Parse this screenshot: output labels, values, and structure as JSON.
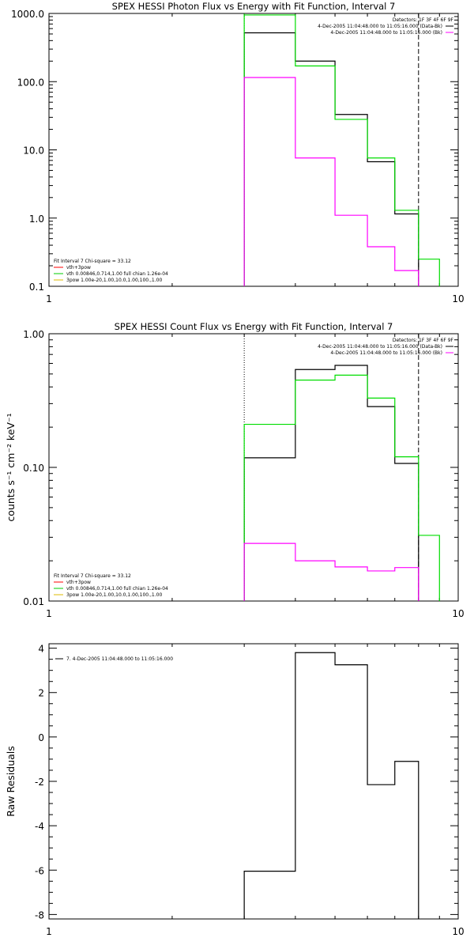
{
  "chart_data": [
    {
      "type": "line",
      "title": "SPEX HESSI Photon Flux vs Energy with Fit Function, Interval 7",
      "xlabel": "",
      "ylabel": "",
      "xscale": "log",
      "yscale": "log",
      "xlim": [
        1,
        10
      ],
      "ylim": [
        0.1,
        1000
      ],
      "xticklabels": [
        "1",
        "10"
      ],
      "yticklabels": [
        "0.1",
        "1.0",
        "10.0",
        "100.0",
        "1000.0"
      ],
      "edges": [
        3,
        4,
        5,
        6,
        7,
        8,
        9
      ],
      "series": [
        {
          "name": "",
          "color": "#000000",
          "values": [
            520,
            200,
            33,
            6.7,
            1.15
          ]
        },
        {
          "name": "vth+3pow",
          "color": "#00dd00",
          "values": [
            950,
            170,
            28,
            7.6,
            1.3,
            0.25
          ]
        },
        {
          "name": "3pow",
          "color": "#ff00ff",
          "values": [
            115,
            7.6,
            1.1,
            0.38,
            0.17
          ]
        }
      ],
      "vlines": [
        {
          "x": 3,
          "style": "dotted",
          "color": "#00cc00"
        },
        {
          "x": 8,
          "style": "dashed",
          "color": "#000000"
        }
      ],
      "legend_top_right": [
        {
          "text": "Detectors: 1F 3F 4F 6F 9F",
          "color": ""
        },
        {
          "text": "4-Dec-2005 11:04:48.000 to 11:05:16.000 (Data-Bk)",
          "color": "#000000"
        },
        {
          "text": "4-Dec-2005 11:04:48.000 to 11:05:16.000 (Bk)",
          "color": "#ff00ff"
        }
      ],
      "legend_bottom_left": [
        {
          "text": "Fit Interval 7   Chi-square = 33.12",
          "color": ""
        },
        {
          "text": "vth+3pow",
          "color": "#ff0000"
        },
        {
          "text": "vth 0.00846,0.714,1.00  full chian 1.26e-04",
          "color": "#00cc00"
        },
        {
          "text": "3pow 1.00e-20,1.00,10.0,1.00,100.,1.00",
          "color": "#ddbb00"
        }
      ]
    },
    {
      "type": "line",
      "title": "SPEX HESSI Count Flux vs Energy with Fit Function, Interval 7",
      "xlabel": "",
      "ylabel": "counts s⁻¹ cm⁻² keV⁻¹",
      "xscale": "log",
      "yscale": "log",
      "xlim": [
        1,
        10
      ],
      "ylim": [
        0.01,
        1
      ],
      "xticklabels": [
        "1",
        "10"
      ],
      "yticklabels": [
        "0.01",
        "0.10",
        "1.00"
      ],
      "edges": [
        3,
        4,
        5,
        6,
        7,
        8,
        9
      ],
      "series": [
        {
          "name": "",
          "color": "#000000",
          "values": [
            0.118,
            0.54,
            0.58,
            0.285,
            0.107
          ]
        },
        {
          "name": "vth+3pow",
          "color": "#00dd00",
          "values": [
            0.21,
            0.45,
            0.49,
            0.33,
            0.12,
            0.031
          ]
        },
        {
          "name": "3pow",
          "color": "#ff00ff",
          "values": [
            0.027,
            0.02,
            0.018,
            0.0168,
            0.0178
          ]
        }
      ],
      "vlines": [
        {
          "x": 3,
          "style": "dotted",
          "color": "#000000"
        },
        {
          "x": 8,
          "style": "dashed",
          "color": "#000000"
        }
      ],
      "legend_top_right": [
        {
          "text": "Detectors: 1F 3F 4F 6F 9F",
          "color": ""
        },
        {
          "text": "4-Dec-2005 11:04:48.000 to 11:05:16.000 (Data-Bk)",
          "color": "#000000"
        },
        {
          "text": "4-Dec-2005 11:04:48.000 to 11:05:16.000 (Bk)",
          "color": "#ff00ff"
        }
      ],
      "legend_bottom_left": [
        {
          "text": "Fit Interval 7   Chi-square = 33.12",
          "color": ""
        },
        {
          "text": "vth+3pow",
          "color": "#ff0000"
        },
        {
          "text": "vth 0.00846,0.714,1.00  full chian 1.26e-04",
          "color": "#00cc00"
        },
        {
          "text": "3pow 1.00e-20,1.00,10.0,1.00,100.,1.00",
          "color": "#ddbb00"
        }
      ]
    },
    {
      "type": "line",
      "title": "",
      "xlabel": "",
      "ylabel": "Raw Residuals",
      "xscale": "log",
      "yscale": "linear",
      "xlim": [
        1,
        10
      ],
      "ylim": [
        -8.2,
        4.2
      ],
      "xticklabels": [
        "1",
        "10"
      ],
      "yticks": [
        -8,
        -6,
        -4,
        -2,
        0,
        2,
        4
      ],
      "yticklabels": [
        "-8",
        "-6",
        "-4",
        "-2",
        "0",
        "2",
        "4"
      ],
      "edges": [
        3,
        4,
        5,
        6,
        7,
        8
      ],
      "series": [
        {
          "name": "",
          "color": "#000000",
          "values": [
            -6.05,
            3.8,
            3.25,
            -2.15,
            -1.1
          ]
        }
      ],
      "vlines": [],
      "legend_top_right": [],
      "legend_bottom_left": [],
      "legend_top_left": [
        {
          "text": "7.  4-Dec-2005 11:04:48.000 to 11:05:16.000",
          "color": "#000000"
        }
      ]
    }
  ]
}
